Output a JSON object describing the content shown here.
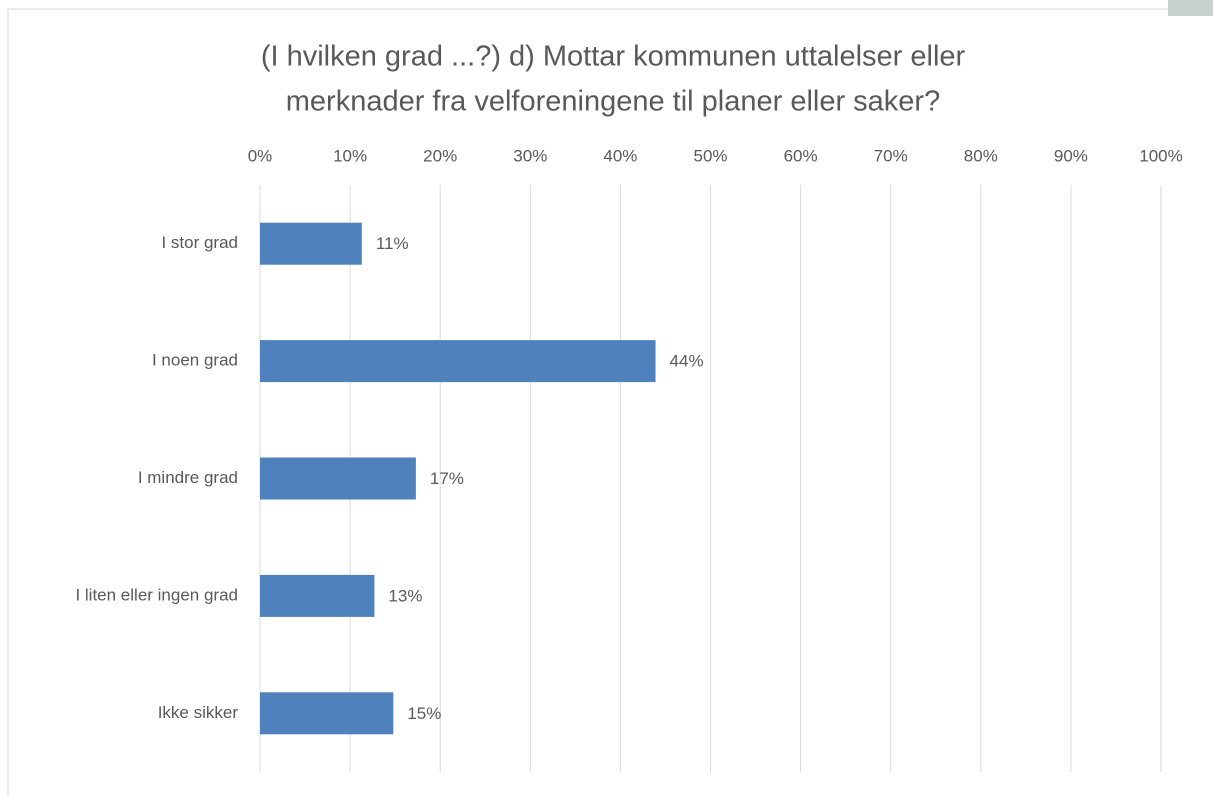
{
  "chart_data": {
    "type": "bar",
    "orientation": "horizontal",
    "title": [
      "(I hvilken grad ...?) d) Mottar kommunen uttalelser eller",
      "merknader fra velforeningene til planer eller saker?"
    ],
    "categories": [
      "I stor grad",
      "I noen grad",
      "I mindre grad",
      "I liten eller ingen grad",
      "Ikke sikker"
    ],
    "values": [
      11.3,
      43.9,
      17.3,
      12.7,
      14.8
    ],
    "value_labels": [
      "11%",
      "44%",
      "17%",
      "13%",
      "15%"
    ],
    "color": "#4f81bd",
    "xlim": [
      0,
      100
    ],
    "xticks": [
      {
        "value": 0,
        "label": "0%"
      },
      {
        "value": 10,
        "label": "10%"
      },
      {
        "value": 20,
        "label": "20%"
      },
      {
        "value": 30,
        "label": "30%"
      },
      {
        "value": 40,
        "label": "40%"
      },
      {
        "value": 50,
        "label": "50%"
      },
      {
        "value": 60,
        "label": "60%"
      },
      {
        "value": 70,
        "label": "70%"
      },
      {
        "value": 80,
        "label": "80%"
      },
      {
        "value": 90,
        "label": "90%"
      },
      {
        "value": 100,
        "label": "100%"
      }
    ],
    "grid": true
  }
}
